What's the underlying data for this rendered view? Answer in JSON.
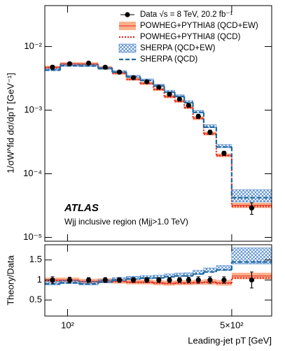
{
  "chart_data": [
    {
      "type": "histogram",
      "xscale": "log",
      "yscale": "log",
      "ylabel": "1/σW^fid dσ/dpT [GeV⁻¹]",
      "annotations": [
        "ATLAS",
        "Wjj inclusive region (Mjj>1.0 TeV)"
      ],
      "legend": "upper right",
      "xlim": [
        80,
        740
      ],
      "ylim": [
        8.7e-06,
        0.044
      ],
      "yticks": [
        {
          "value": 1e-05,
          "label": "10⁻⁵"
        },
        {
          "value": 0.0001,
          "label": "10⁻⁴"
        },
        {
          "value": 0.001,
          "label": "10⁻³"
        },
        {
          "value": 0.01,
          "label": "10⁻²"
        }
      ],
      "bins": [
        80,
        93,
        112,
        135,
        155,
        178,
        204,
        232,
        258,
        286,
        314,
        342,
        380,
        430,
        500,
        740
      ],
      "series": [
        {
          "name": "Data √s = 8 TeV, 20.2 fb⁻¹",
          "style": "points",
          "color": "#000000",
          "values": [
            0.00472,
            0.00535,
            0.00549,
            0.00472,
            0.00396,
            0.00324,
            0.00279,
            0.00229,
            0.00178,
            0.00149,
            0.00119,
            0.0008,
            0.00045,
            0.00021,
            2.9e-05
          ],
          "errors": [
            0.00035,
            0.00035,
            0.00033,
            0.00028,
            0.00024,
            0.00019,
            0.00017,
            0.00014,
            0.00011,
            9e-05,
            8e-05,
            6e-05,
            3.5e-05,
            1.6e-05,
            6e-06
          ]
        },
        {
          "name": "POWHEG+PYTHIA8 (QCD+EW)",
          "style": "band",
          "color": "#fbb08c",
          "values": [
            0.00472,
            0.00535,
            0.00533,
            0.00463,
            0.00384,
            0.00308,
            0.00265,
            0.00213,
            0.00164,
            0.00139,
            0.00111,
            0.00075,
            0.00043,
            0.000195,
            3.2e-05
          ],
          "errors": [
            0.00028,
            0.00032,
            0.00032,
            0.00028,
            0.00023,
            0.00018,
            0.00016,
            0.00013,
            0.0001,
            8e-05,
            7e-05,
            5e-05,
            3e-05,
            1.3e-05,
            3e-06
          ]
        },
        {
          "name": "POWHEG+PYTHIA8 (QCD)",
          "style": "dotted",
          "color": "#e3261c",
          "values": [
            0.00467,
            0.0053,
            0.00527,
            0.00458,
            0.0038,
            0.00305,
            0.00262,
            0.00211,
            0.00162,
            0.00137,
            0.00109,
            0.00074,
            0.00042,
            0.000193,
            3.05e-05
          ]
        },
        {
          "name": "SHERPA (QCD+EW)",
          "style": "hatch",
          "color": "#3d7cc9",
          "values": [
            0.00434,
            0.00508,
            0.00505,
            0.00458,
            0.00404,
            0.0034,
            0.00299,
            0.00247,
            0.00198,
            0.00168,
            0.00136,
            0.00095,
            0.00056,
            0.000273,
            4.6e-05
          ],
          "errors": [
            0.00015,
            0.00018,
            0.00018,
            0.00016,
            0.00014,
            0.00012,
            0.0001,
            9e-05,
            7e-05,
            6e-05,
            5e-05,
            4e-05,
            3e-05,
            1.5e-05,
            1e-05
          ]
        },
        {
          "name": "SHERPA (QCD)",
          "style": "dashed",
          "color": "#1f6a9e",
          "values": [
            0.00425,
            0.00498,
            0.00494,
            0.00448,
            0.00396,
            0.00334,
            0.00293,
            0.0024,
            0.00192,
            0.00164,
            0.00131,
            0.00092,
            0.00054,
            0.000263,
            4.2e-05
          ]
        }
      ]
    },
    {
      "type": "histogram",
      "xscale": "log",
      "yscale": "linear",
      "xlabel": "Leading-jet pT [GeV]",
      "ylabel": "Theory/Data",
      "xlim": [
        80,
        740
      ],
      "ylim": [
        0.1,
        1.88
      ],
      "xticks": [
        {
          "value": 100,
          "label": "10²"
        },
        {
          "value": 500,
          "label": "5×10²"
        }
      ],
      "yticks": [
        0.5,
        1,
        1.5
      ],
      "bins": [
        80,
        93,
        112,
        135,
        155,
        178,
        204,
        232,
        258,
        286,
        314,
        342,
        380,
        430,
        500,
        740
      ],
      "series": [
        {
          "style": "band",
          "color": "#fbb08c",
          "values": [
            1.0,
            1.0,
            0.97,
            0.98,
            0.97,
            0.95,
            0.95,
            0.93,
            0.92,
            0.93,
            0.93,
            0.94,
            0.95,
            0.93,
            1.1
          ],
          "errors": [
            0.06,
            0.06,
            0.06,
            0.06,
            0.06,
            0.06,
            0.06,
            0.06,
            0.06,
            0.06,
            0.06,
            0.06,
            0.07,
            0.07,
            0.08
          ]
        },
        {
          "style": "dotted",
          "color": "#e3261c",
          "values": [
            0.99,
            0.99,
            0.96,
            0.97,
            0.96,
            0.94,
            0.94,
            0.92,
            0.91,
            0.92,
            0.92,
            0.93,
            0.94,
            0.92,
            1.05
          ]
        },
        {
          "style": "hatch",
          "color": "#3d7cc9",
          "values": [
            0.92,
            0.95,
            0.92,
            0.97,
            1.02,
            1.05,
            1.07,
            1.08,
            1.11,
            1.13,
            1.14,
            1.19,
            1.25,
            1.3,
            1.6
          ],
          "errors": [
            0.04,
            0.04,
            0.04,
            0.04,
            0.04,
            0.04,
            0.04,
            0.04,
            0.04,
            0.04,
            0.04,
            0.05,
            0.05,
            0.06,
            0.2
          ]
        },
        {
          "style": "dashed",
          "color": "#1f6a9e",
          "values": [
            0.9,
            0.93,
            0.9,
            0.95,
            1.0,
            1.03,
            1.05,
            1.05,
            1.08,
            1.1,
            1.1,
            1.15,
            1.2,
            1.25,
            1.45
          ]
        },
        {
          "style": "points",
          "color": "#000000",
          "values": [
            1,
            1,
            1,
            1,
            1,
            1,
            1,
            1,
            1,
            1,
            1,
            1,
            1,
            1,
            1
          ],
          "errors": [
            0.08,
            0.07,
            0.06,
            0.06,
            0.06,
            0.06,
            0.06,
            0.06,
            0.06,
            0.06,
            0.07,
            0.08,
            0.08,
            0.08,
            0.2
          ]
        }
      ]
    }
  ]
}
